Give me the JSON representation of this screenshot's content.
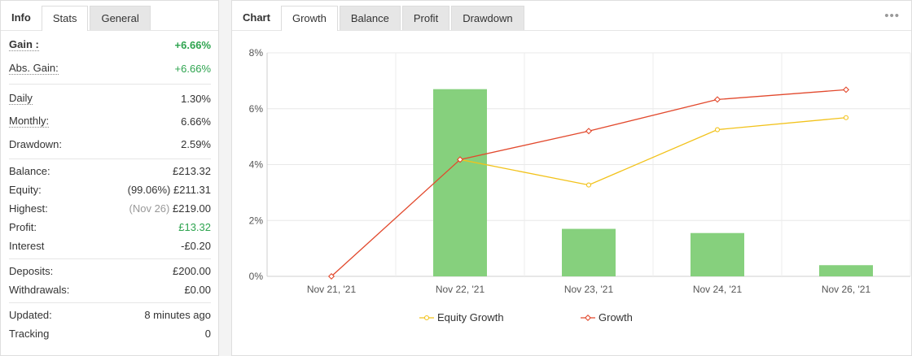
{
  "left": {
    "tabs": [
      {
        "label": "Info"
      },
      {
        "label": "Stats"
      },
      {
        "label": "General"
      }
    ],
    "stats": {
      "gain": {
        "label": "Gain :",
        "value": "+6.66%"
      },
      "abs_gain": {
        "label": "Abs. Gain:",
        "value": "+6.66%"
      },
      "daily": {
        "label": "Daily",
        "value": "1.30%"
      },
      "monthly": {
        "label": "Monthly:",
        "value": "6.66%"
      },
      "drawdown": {
        "label": "Drawdown:",
        "value": "2.59%"
      },
      "balance": {
        "label": "Balance:",
        "value": "£213.32"
      },
      "equity": {
        "label": "Equity:",
        "value": "(99.06%) £211.31"
      },
      "highest": {
        "label": "Highest:",
        "date": "(Nov 26)",
        "value": "£219.00"
      },
      "profit": {
        "label": "Profit:",
        "value": "£13.32"
      },
      "interest": {
        "label": "Interest",
        "value": "-£0.20"
      },
      "deposits": {
        "label": "Deposits:",
        "value": "£200.00"
      },
      "withdrawals": {
        "label": "Withdrawals:",
        "value": "£0.00"
      },
      "updated": {
        "label": "Updated:",
        "value": "8 minutes ago"
      },
      "tracking": {
        "label": "Tracking",
        "value": "0"
      }
    }
  },
  "right": {
    "tabs": [
      {
        "label": "Chart"
      },
      {
        "label": "Growth"
      },
      {
        "label": "Balance"
      },
      {
        "label": "Profit"
      },
      {
        "label": "Drawdown"
      }
    ],
    "more_icon": "•••"
  },
  "chart_data": {
    "type": "bar",
    "categories": [
      "Nov 21, '21",
      "Nov 22, '21",
      "Nov 23, '21",
      "Nov 24, '21",
      "Nov 26, '21"
    ],
    "yticks": [
      "0%",
      "2%",
      "4%",
      "6%",
      "8%"
    ],
    "ylim": [
      0,
      8
    ],
    "grid": true,
    "legend_position": "bottom",
    "bar_color": "#86d07d",
    "bars": [
      null,
      6.7,
      1.7,
      1.55,
      0.4
    ],
    "series": [
      {
        "name": "Equity Growth",
        "type": "line",
        "color": "#f2c21a",
        "values": [
          null,
          4.18,
          3.27,
          5.25,
          5.68
        ]
      },
      {
        "name": "Growth",
        "type": "line",
        "color": "#e2492d",
        "values": [
          0,
          4.18,
          5.2,
          6.33,
          6.68
        ]
      }
    ]
  }
}
